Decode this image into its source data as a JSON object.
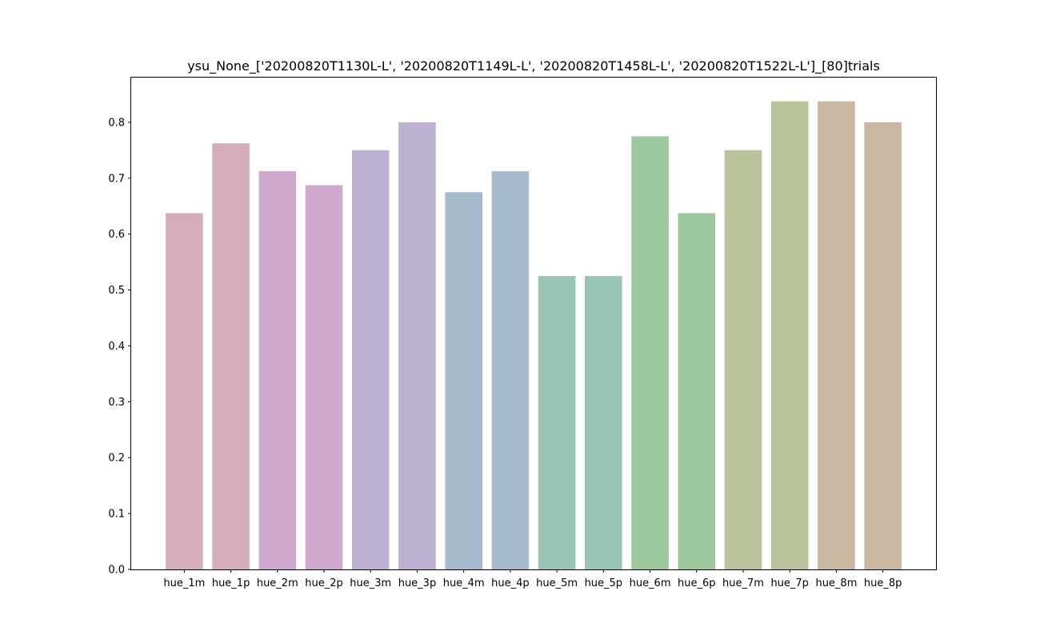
{
  "chart_data": {
    "type": "bar",
    "title": "ysu_None_['20200820T1130L-L', '20200820T1149L-L', '20200820T1458L-L', '20200820T1522L-L']_[80]trials",
    "xlabel": "",
    "ylabel": "",
    "ylim": [
      0,
      0.88
    ],
    "yticks": [
      "0.0",
      "0.1",
      "0.2",
      "0.3",
      "0.4",
      "0.5",
      "0.6",
      "0.7",
      "0.8"
    ],
    "grid": false,
    "categories": [
      "hue_1m",
      "hue_1p",
      "hue_2m",
      "hue_2p",
      "hue_3m",
      "hue_3p",
      "hue_4m",
      "hue_4p",
      "hue_5m",
      "hue_5p",
      "hue_6m",
      "hue_6p",
      "hue_7m",
      "hue_7p",
      "hue_8m",
      "hue_8p"
    ],
    "values": [
      0.6375,
      0.7625,
      0.7125,
      0.6875,
      0.75,
      0.8,
      0.675,
      0.7125,
      0.525,
      0.525,
      0.775,
      0.6375,
      0.75,
      0.8375,
      0.8375,
      0.8
    ],
    "colors": [
      "#d5adb8",
      "#d5adb8",
      "#cfa8cd",
      "#cfa8cd",
      "#bcb0d3",
      "#bcb0d3",
      "#a6b9cd",
      "#a6b9cd",
      "#98c5b7",
      "#98c5b7",
      "#9dc89e",
      "#9dc89e",
      "#b8c399",
      "#b8c399",
      "#c9b7a2",
      "#c9b7a2"
    ]
  }
}
